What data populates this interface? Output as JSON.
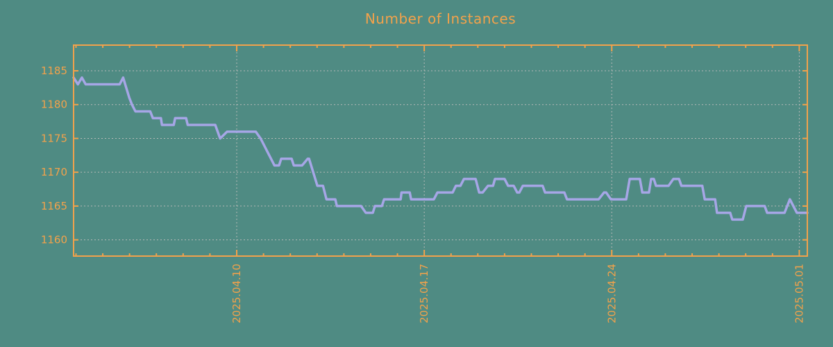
{
  "chart_data": {
    "type": "line",
    "title": "Number of Instances",
    "legend": "none",
    "grid": "dotted, at weekly x ticks and 5-unit y ticks",
    "x_axis": {
      "lim": [
        0,
        27.39
      ],
      "unit": "days from 2025.04.03 (approx)",
      "ticks": [
        {
          "pos": 6.09,
          "label": "2025.04.10"
        },
        {
          "pos": 13.09,
          "label": "2025.04.17"
        },
        {
          "pos": 20.09,
          "label": "2025.04.24"
        },
        {
          "pos": 27.09,
          "label": "2025.05.01"
        }
      ],
      "minor": {
        "start": 0.09,
        "step": 1,
        "end": 27.3
      }
    },
    "y_axis": {
      "lim": [
        1157.6,
        1188.8
      ],
      "ticks": [
        {
          "pos": 1160,
          "label": "1160"
        },
        {
          "pos": 1165,
          "label": "1165"
        },
        {
          "pos": 1170,
          "label": "1170"
        },
        {
          "pos": 1175,
          "label": "1175"
        },
        {
          "pos": 1180,
          "label": "1180"
        },
        {
          "pos": 1185,
          "label": "1185"
        }
      ]
    },
    "series": [
      {
        "name": "instances",
        "points": [
          [
            0.0,
            1184
          ],
          [
            0.16,
            1183
          ],
          [
            0.31,
            1184
          ],
          [
            0.45,
            1183
          ],
          [
            1.72,
            1183
          ],
          [
            1.85,
            1184
          ],
          [
            2.08,
            1181
          ],
          [
            2.18,
            1180
          ],
          [
            2.31,
            1179
          ],
          [
            2.86,
            1179
          ],
          [
            2.96,
            1178
          ],
          [
            3.26,
            1178
          ],
          [
            3.3,
            1177
          ],
          [
            3.74,
            1177
          ],
          [
            3.79,
            1178
          ],
          [
            4.2,
            1178
          ],
          [
            4.26,
            1177
          ],
          [
            5.29,
            1177
          ],
          [
            5.47,
            1175
          ],
          [
            5.73,
            1176
          ],
          [
            6.8,
            1176
          ],
          [
            6.98,
            1175
          ],
          [
            7.5,
            1171
          ],
          [
            7.67,
            1171
          ],
          [
            7.75,
            1172
          ],
          [
            8.14,
            1172
          ],
          [
            8.22,
            1171
          ],
          [
            8.53,
            1171
          ],
          [
            8.74,
            1172
          ],
          [
            8.79,
            1172
          ],
          [
            9.1,
            1168
          ],
          [
            9.31,
            1168
          ],
          [
            9.44,
            1166
          ],
          [
            9.77,
            1166
          ],
          [
            9.83,
            1165
          ],
          [
            10.73,
            1165
          ],
          [
            10.91,
            1164
          ],
          [
            11.17,
            1164
          ],
          [
            11.25,
            1165
          ],
          [
            11.51,
            1165
          ],
          [
            11.59,
            1166
          ],
          [
            12.21,
            1166
          ],
          [
            12.24,
            1167
          ],
          [
            12.55,
            1167
          ],
          [
            12.6,
            1166
          ],
          [
            13.45,
            1166
          ],
          [
            13.58,
            1167
          ],
          [
            14.15,
            1167
          ],
          [
            14.27,
            1168
          ],
          [
            14.44,
            1168
          ],
          [
            14.57,
            1169
          ],
          [
            15.01,
            1169
          ],
          [
            15.14,
            1167
          ],
          [
            15.27,
            1167
          ],
          [
            15.47,
            1168
          ],
          [
            15.66,
            1168
          ],
          [
            15.73,
            1169
          ],
          [
            16.09,
            1169
          ],
          [
            16.22,
            1168
          ],
          [
            16.43,
            1168
          ],
          [
            16.56,
            1167
          ],
          [
            16.64,
            1167
          ],
          [
            16.77,
            1168
          ],
          [
            17.51,
            1168
          ],
          [
            17.6,
            1167
          ],
          [
            18.32,
            1167
          ],
          [
            18.42,
            1166
          ],
          [
            19.28,
            1166
          ],
          [
            19.6,
            1166
          ],
          [
            19.8,
            1167
          ],
          [
            19.88,
            1167
          ],
          [
            20.06,
            1166
          ],
          [
            20.63,
            1166
          ],
          [
            20.76,
            1169
          ],
          [
            21.14,
            1169
          ],
          [
            21.23,
            1167
          ],
          [
            21.48,
            1167
          ],
          [
            21.56,
            1169
          ],
          [
            21.66,
            1169
          ],
          [
            21.74,
            1168
          ],
          [
            22.21,
            1168
          ],
          [
            22.39,
            1169
          ],
          [
            22.6,
            1169
          ],
          [
            22.69,
            1168
          ],
          [
            23.47,
            1168
          ],
          [
            23.56,
            1166
          ],
          [
            23.95,
            1166
          ],
          [
            24.02,
            1164
          ],
          [
            24.51,
            1164
          ],
          [
            24.59,
            1163
          ],
          [
            24.98,
            1163
          ],
          [
            25.11,
            1165
          ],
          [
            25.8,
            1165
          ],
          [
            25.89,
            1164
          ],
          [
            26.54,
            1164
          ],
          [
            26.74,
            1166
          ],
          [
            27.0,
            1164
          ],
          [
            27.39,
            1164
          ]
        ]
      }
    ],
    "style": {
      "background": "#4f8b83",
      "axis_color": "#f2a24b",
      "title_color": "#f2a24b",
      "tick_label_color": "#f2a24b",
      "grid_color": "#b7bab8",
      "line_color": "#a6a6e6"
    }
  }
}
